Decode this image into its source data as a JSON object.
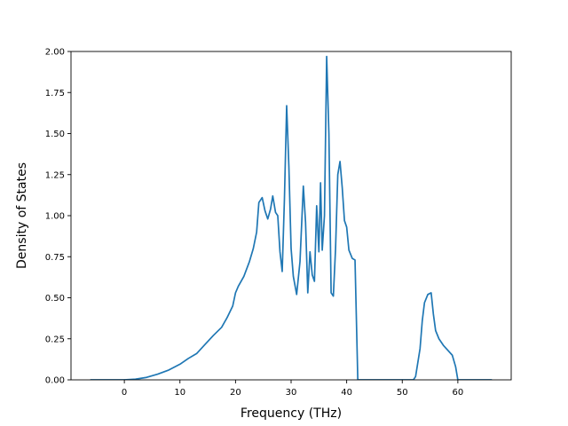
{
  "chart_data": {
    "type": "line",
    "title": "",
    "xlabel": "Frequency (THz)",
    "ylabel": "Density of States",
    "xlim": [
      -9.6,
      69.6
    ],
    "ylim": [
      0.0,
      2.0
    ],
    "xticks": [
      0,
      10,
      20,
      30,
      40,
      50,
      60
    ],
    "yticks": [
      0.0,
      0.25,
      0.5,
      0.75,
      1.0,
      1.25,
      1.5,
      1.75,
      2.0
    ],
    "xtick_labels": [
      "0",
      "10",
      "20",
      "30",
      "40",
      "50",
      "60"
    ],
    "ytick_labels": [
      "0.00",
      "0.25",
      "0.50",
      "0.75",
      "1.00",
      "1.25",
      "1.50",
      "1.75",
      "2.00"
    ],
    "grid": false,
    "legend": "none",
    "series": [
      {
        "color": "#1f77b4",
        "x": [
          -6.0,
          0.0,
          2.0,
          4.0,
          6.0,
          8.0,
          10.0,
          11.5,
          13.0,
          14.5,
          16.0,
          17.5,
          18.5,
          19.5,
          20.0,
          20.5,
          21.5,
          22.5,
          23.2,
          23.8,
          24.2,
          24.8,
          25.3,
          25.8,
          26.3,
          26.7,
          27.2,
          27.6,
          28.0,
          28.4,
          28.8,
          29.2,
          29.6,
          30.0,
          30.4,
          31.0,
          31.6,
          32.2,
          32.6,
          33.0,
          33.4,
          33.8,
          34.2,
          34.6,
          35.0,
          35.3,
          35.6,
          36.0,
          36.4,
          36.8,
          37.2,
          37.6,
          38.0,
          38.4,
          38.8,
          39.2,
          39.6,
          40.0,
          40.4,
          41.0,
          41.5,
          42.0,
          44.0,
          48.0,
          51.0,
          52.0,
          52.4,
          53.2,
          53.6,
          54.0,
          54.6,
          55.2,
          55.6,
          56.0,
          56.6,
          57.4,
          58.2,
          59.0,
          59.6,
          60.0,
          62.0,
          66.0
        ],
        "y": [
          0.0,
          0.0,
          0.004,
          0.015,
          0.035,
          0.06,
          0.095,
          0.13,
          0.16,
          0.215,
          0.27,
          0.32,
          0.38,
          0.45,
          0.53,
          0.57,
          0.63,
          0.72,
          0.8,
          0.9,
          1.08,
          1.11,
          1.03,
          0.98,
          1.04,
          1.12,
          1.02,
          1.0,
          0.78,
          0.66,
          1.1,
          1.67,
          1.3,
          0.8,
          0.63,
          0.52,
          0.72,
          1.18,
          0.96,
          0.53,
          0.78,
          0.64,
          0.6,
          1.06,
          0.78,
          1.2,
          0.79,
          1.0,
          1.97,
          1.5,
          0.53,
          0.51,
          0.8,
          1.25,
          1.33,
          1.17,
          0.97,
          0.93,
          0.79,
          0.74,
          0.73,
          0.0,
          0.0,
          0.0,
          0.0,
          0.0,
          0.02,
          0.19,
          0.36,
          0.47,
          0.52,
          0.53,
          0.4,
          0.3,
          0.25,
          0.21,
          0.18,
          0.15,
          0.08,
          0.0,
          0.0,
          0.0
        ]
      }
    ]
  }
}
